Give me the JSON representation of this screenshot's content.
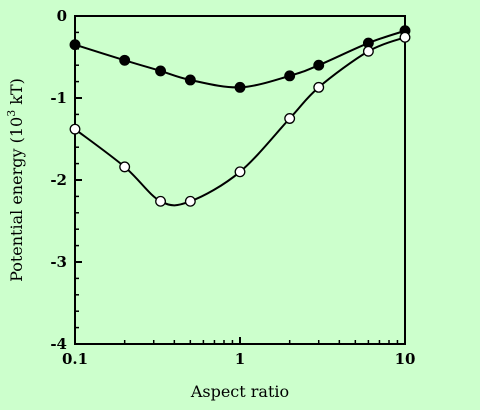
{
  "chart_data": {
    "type": "scatter",
    "title": "",
    "xlabel": "Aspect ratio",
    "ylabel_parts": [
      "Potential energy (10",
      "3",
      " kT)"
    ],
    "x_scale": "log",
    "xlim": [
      0.1,
      10
    ],
    "ylim": [
      -4,
      0
    ],
    "x_ticks": [
      0.1,
      1,
      10
    ],
    "x_tick_labels": [
      "0.1",
      "1",
      "10"
    ],
    "y_ticks": [
      0,
      -1,
      -2,
      -3,
      -4
    ],
    "y_tick_labels": [
      "0",
      "-1",
      "-2",
      "-3",
      "-4"
    ],
    "grid": false,
    "legend": "none",
    "series": [
      {
        "marker": "filled-circle",
        "x": [
          0.1,
          0.2,
          0.33,
          0.5,
          1,
          2,
          3,
          6,
          10
        ],
        "y": [
          -0.35,
          -0.54,
          -0.67,
          -0.78,
          -0.87,
          -0.73,
          -0.6,
          -0.33,
          -0.18
        ],
        "color": "#000000"
      },
      {
        "marker": "open-circle",
        "x": [
          0.1,
          0.2,
          0.33,
          0.5,
          1,
          2,
          3,
          6,
          10
        ],
        "y": [
          -1.38,
          -1.84,
          -2.26,
          -2.26,
          -1.9,
          -1.25,
          -0.87,
          -0.43,
          -0.26
        ],
        "color": "#000000"
      }
    ]
  }
}
